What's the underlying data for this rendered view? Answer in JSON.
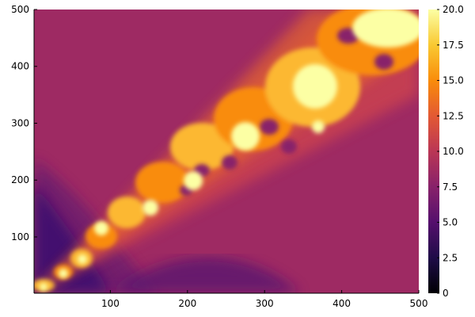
{
  "chart_data": {
    "type": "heatmap",
    "title": "",
    "xlabel": "",
    "ylabel": "",
    "xlim": [
      1,
      500
    ],
    "ylim": [
      1,
      500
    ],
    "x_ticks": [
      100,
      200,
      300,
      400,
      500
    ],
    "y_ticks": [
      100,
      200,
      300,
      400,
      500
    ],
    "colorbar": {
      "range": [
        0,
        20
      ],
      "ticks": [
        0,
        2.5,
        5,
        7.5,
        10,
        12.5,
        15,
        17.5,
        20
      ],
      "tick_labels": [
        "0",
        "2.5",
        "5.0",
        "7.5",
        "10.0",
        "12.5",
        "15.0",
        "17.5",
        "20.0"
      ],
      "colormap": "inferno"
    },
    "description_values": {
      "background_level": 8.5,
      "max_level": 20
    },
    "grid": true,
    "legend": "colorbar-right"
  }
}
